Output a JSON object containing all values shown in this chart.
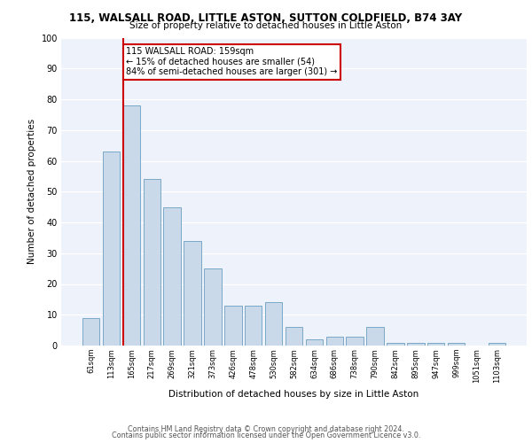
{
  "title1": "115, WALSALL ROAD, LITTLE ASTON, SUTTON COLDFIELD, B74 3AY",
  "title2": "Size of property relative to detached houses in Little Aston",
  "xlabel": "Distribution of detached houses by size in Little Aston",
  "ylabel": "Number of detached properties",
  "bar_labels": [
    "61sqm",
    "113sqm",
    "165sqm",
    "217sqm",
    "269sqm",
    "321sqm",
    "373sqm",
    "426sqm",
    "478sqm",
    "530sqm",
    "582sqm",
    "634sqm",
    "686sqm",
    "738sqm",
    "790sqm",
    "842sqm",
    "895sqm",
    "947sqm",
    "999sqm",
    "1051sqm",
    "1103sqm"
  ],
  "bar_values": [
    9,
    63,
    78,
    54,
    45,
    34,
    25,
    13,
    13,
    14,
    6,
    2,
    3,
    3,
    6,
    1,
    1,
    1,
    1,
    0,
    1
  ],
  "bar_color": "#c9d9ea",
  "bar_edge_color": "#6a9ec0",
  "background_color": "#eef2fb",
  "grid_color": "#ffffff",
  "vline_color": "#cc0000",
  "annotation_text": "115 WALSALL ROAD: 159sqm\n← 15% of detached houses are smaller (54)\n84% of semi-detached houses are larger (301) →",
  "annotation_box_color": "#cc0000",
  "ylim": [
    0,
    100
  ],
  "yticks": [
    0,
    10,
    20,
    30,
    40,
    50,
    60,
    70,
    80,
    90,
    100
  ],
  "footer1": "Contains HM Land Registry data © Crown copyright and database right 2024.",
  "footer2": "Contains public sector information licensed under the Open Government Licence v3.0."
}
